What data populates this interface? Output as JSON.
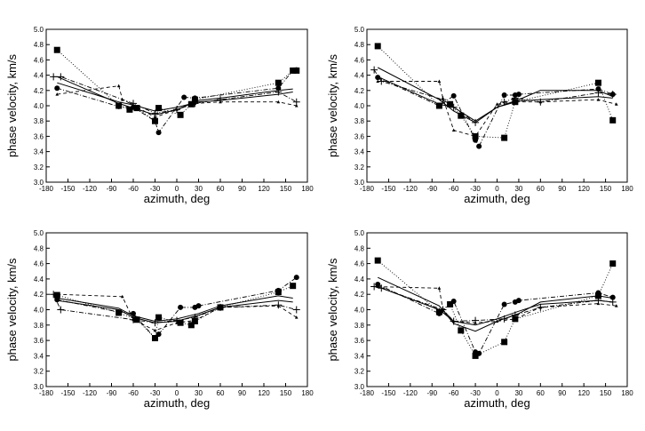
{
  "chart_data": [
    {
      "type": "line",
      "xlabel": "azimuth, deg",
      "ylabel": "phase velocity, km/s",
      "xlim": [
        -180,
        180
      ],
      "ylim": [
        3.0,
        5.0
      ],
      "xticks": [
        "-180",
        "-150",
        "-120",
        "-90",
        "-60",
        "-30",
        "0",
        "30",
        "60",
        "90",
        "120",
        "150",
        "180"
      ],
      "yticks": [
        "3.0",
        "3.2",
        "3.4",
        "3.6",
        "3.8",
        "4.0",
        "4.2",
        "4.4",
        "4.6",
        "4.8",
        "5.0"
      ],
      "series": [
        {
          "style": "solid",
          "marker": "none",
          "x": [
            -165,
            -80,
            -60,
            -30,
            0,
            30,
            60,
            140,
            160
          ],
          "y": [
            4.38,
            4.03,
            3.97,
            3.88,
            3.95,
            4.07,
            4.1,
            4.2,
            4.22
          ]
        },
        {
          "style": "solid",
          "marker": "none",
          "x": [
            -165,
            -80,
            -60,
            -30,
            0,
            30,
            60,
            140,
            160
          ],
          "y": [
            4.3,
            4.05,
            4.01,
            3.93,
            3.98,
            4.05,
            4.07,
            4.15,
            4.18
          ]
        },
        {
          "style": "dotted",
          "marker": "square",
          "x": [
            -165,
            -80,
            -65,
            -55,
            -30,
            -25,
            5,
            20,
            25,
            140,
            160,
            165
          ],
          "y": [
            4.73,
            4.0,
            3.95,
            3.97,
            3.8,
            3.97,
            3.88,
            4.02,
            4.08,
            4.3,
            4.46,
            4.46
          ]
        },
        {
          "style": "dashdot",
          "marker": "circle",
          "x": [
            -165,
            -80,
            -60,
            -30,
            -25,
            10,
            25,
            140,
            160,
            165
          ],
          "y": [
            4.23,
            3.99,
            3.98,
            3.8,
            3.65,
            4.11,
            4.1,
            4.23,
            4.46,
            4.47
          ]
        },
        {
          "style": "dashed",
          "marker": "triangle",
          "x": [
            -165,
            -80,
            -75,
            -60,
            -30,
            0,
            25,
            60,
            140,
            165
          ],
          "y": [
            4.15,
            4.26,
            4.08,
            4.01,
            3.85,
            3.95,
            4.03,
            4.05,
            4.05,
            4.0
          ]
        },
        {
          "style": "dashdot",
          "marker": "plus",
          "x": [
            -170,
            -160,
            -60,
            -30,
            0,
            25,
            60,
            140,
            165
          ],
          "y": [
            4.38,
            4.38,
            4.03,
            3.9,
            3.95,
            4.03,
            4.08,
            4.18,
            4.05
          ]
        }
      ]
    },
    {
      "type": "line",
      "xlabel": "azimuth, deg",
      "ylabel": "phase velocity, km/s",
      "xlim": [
        -180,
        180
      ],
      "ylim": [
        3.0,
        5.0
      ],
      "xticks": [
        "-180",
        "-150",
        "-120",
        "-90",
        "-60",
        "-30",
        "0",
        "30",
        "60",
        "90",
        "120",
        "150",
        "180"
      ],
      "yticks": [
        "3.0",
        "3.2",
        "3.4",
        "3.6",
        "3.8",
        "4.0",
        "4.2",
        "4.4",
        "4.6",
        "4.8",
        "5.0"
      ],
      "series": [
        {
          "style": "solid",
          "marker": "none",
          "x": [
            -165,
            -80,
            -60,
            -30,
            0,
            30,
            60,
            140,
            160
          ],
          "y": [
            4.5,
            4.08,
            3.93,
            3.78,
            3.98,
            4.08,
            4.2,
            4.2,
            4.12
          ]
        },
        {
          "style": "solid",
          "marker": "none",
          "x": [
            -165,
            -80,
            -60,
            -30,
            0,
            30,
            60,
            140,
            160
          ],
          "y": [
            4.38,
            4.02,
            3.98,
            3.8,
            3.98,
            4.06,
            4.08,
            4.12,
            4.1
          ]
        },
        {
          "style": "dotted",
          "marker": "square",
          "x": [
            -165,
            -80,
            -65,
            -50,
            -30,
            10,
            25,
            140,
            160
          ],
          "y": [
            4.78,
            4.0,
            4.02,
            3.87,
            3.6,
            3.58,
            4.05,
            4.3,
            3.81
          ]
        },
        {
          "style": "dashdot",
          "marker": "circle",
          "x": [
            -165,
            -80,
            -60,
            -30,
            -25,
            10,
            25,
            30,
            140,
            160
          ],
          "y": [
            4.37,
            4.0,
            4.13,
            3.55,
            3.47,
            4.14,
            4.14,
            4.15,
            4.22,
            4.15
          ]
        },
        {
          "style": "dashed",
          "marker": "triangle",
          "x": [
            -165,
            -80,
            -75,
            -60,
            -30,
            0,
            25,
            60,
            140,
            165
          ],
          "y": [
            4.32,
            4.32,
            4.1,
            3.68,
            3.6,
            4.02,
            4.05,
            4.05,
            4.08,
            4.02
          ]
        },
        {
          "style": "dashdot",
          "marker": "plus",
          "x": [
            -170,
            -160,
            -75,
            -60,
            -30,
            10,
            25,
            60,
            140,
            160
          ],
          "y": [
            4.47,
            4.32,
            4.08,
            3.98,
            3.78,
            4.05,
            4.1,
            4.05,
            4.17,
            4.15
          ]
        }
      ]
    },
    {
      "type": "line",
      "xlabel": "azimuth, deg",
      "ylabel": "phase velocity, km/s",
      "xlim": [
        -180,
        180
      ],
      "ylim": [
        3.0,
        5.0
      ],
      "xticks": [
        "-180",
        "-150",
        "-120",
        "-90",
        "-60",
        "-30",
        "0",
        "30",
        "60",
        "90",
        "120",
        "150",
        "180"
      ],
      "yticks": [
        "3.0",
        "3.2",
        "3.4",
        "3.6",
        "3.8",
        "4.0",
        "4.2",
        "4.4",
        "4.6",
        "4.8",
        "5.0"
      ],
      "series": [
        {
          "style": "solid",
          "marker": "none",
          "x": [
            -165,
            -80,
            -60,
            -30,
            0,
            30,
            60,
            140,
            160
          ],
          "y": [
            4.15,
            4.02,
            3.92,
            3.85,
            3.88,
            3.95,
            4.05,
            4.18,
            4.15
          ]
        },
        {
          "style": "solid",
          "marker": "none",
          "x": [
            -165,
            -80,
            -60,
            -30,
            0,
            30,
            60,
            140,
            160
          ],
          "y": [
            4.12,
            4.0,
            3.9,
            3.83,
            3.85,
            3.93,
            4.03,
            4.12,
            4.1
          ]
        },
        {
          "style": "dotted",
          "marker": "square",
          "x": [
            -165,
            -80,
            -55,
            -30,
            -25,
            5,
            20,
            25,
            60,
            140,
            160
          ],
          "y": [
            4.19,
            3.96,
            3.87,
            3.63,
            3.9,
            3.83,
            3.8,
            3.85,
            4.03,
            4.23,
            4.31
          ]
        },
        {
          "style": "dashdot",
          "marker": "circle",
          "x": [
            -165,
            -80,
            -60,
            -30,
            -25,
            5,
            25,
            30,
            140,
            165
          ],
          "y": [
            4.13,
            3.97,
            3.95,
            3.63,
            3.68,
            4.03,
            4.03,
            4.05,
            4.25,
            4.42
          ]
        },
        {
          "style": "dashed",
          "marker": "triangle",
          "x": [
            -165,
            -75,
            -60,
            -30,
            0,
            25,
            60,
            140,
            165
          ],
          "y": [
            4.2,
            4.17,
            3.87,
            3.73,
            3.83,
            3.86,
            4.03,
            4.05,
            3.9
          ]
        },
        {
          "style": "dashdot",
          "marker": "plus",
          "x": [
            -170,
            -160,
            -60,
            -30,
            0,
            25,
            60,
            140,
            165
          ],
          "y": [
            4.2,
            4.0,
            3.87,
            3.83,
            3.86,
            3.9,
            4.03,
            4.06,
            4.0
          ]
        }
      ]
    },
    {
      "type": "line",
      "xlabel": "azimuth, deg",
      "ylabel": "phase velocity, km/s",
      "xlim": [
        -180,
        180
      ],
      "ylim": [
        3.0,
        5.0
      ],
      "xticks": [
        "-180",
        "-150",
        "-120",
        "-90",
        "-60",
        "-30",
        "0",
        "30",
        "60",
        "90",
        "120",
        "150",
        "180"
      ],
      "yticks": [
        "3.0",
        "3.2",
        "3.4",
        "3.6",
        "3.8",
        "4.0",
        "4.2",
        "4.4",
        "4.6",
        "4.8",
        "5.0"
      ],
      "series": [
        {
          "style": "solid",
          "marker": "none",
          "x": [
            -165,
            -80,
            -60,
            -30,
            0,
            30,
            60,
            140,
            160
          ],
          "y": [
            4.42,
            4.05,
            3.82,
            3.72,
            3.85,
            3.95,
            4.1,
            4.18,
            4.15
          ]
        },
        {
          "style": "solid",
          "marker": "none",
          "x": [
            -165,
            -80,
            -60,
            -30,
            0,
            30,
            60,
            140,
            160
          ],
          "y": [
            4.3,
            4.0,
            3.85,
            3.8,
            3.88,
            3.98,
            4.07,
            4.12,
            4.1
          ]
        },
        {
          "style": "dotted",
          "marker": "square",
          "x": [
            -165,
            -80,
            -65,
            -50,
            -30,
            10,
            25,
            140,
            160
          ],
          "y": [
            4.64,
            3.97,
            4.07,
            3.73,
            3.4,
            3.58,
            3.88,
            4.18,
            4.6
          ]
        },
        {
          "style": "dashdot",
          "marker": "circle",
          "x": [
            -165,
            -80,
            -60,
            -30,
            -25,
            10,
            25,
            30,
            140,
            160
          ],
          "y": [
            4.33,
            3.95,
            4.11,
            3.45,
            3.43,
            4.07,
            4.1,
            4.12,
            4.22,
            4.16
          ]
        },
        {
          "style": "dashed",
          "marker": "triangle",
          "x": [
            -165,
            -80,
            -75,
            -60,
            -30,
            0,
            25,
            60,
            140,
            165
          ],
          "y": [
            4.3,
            4.28,
            4.0,
            3.85,
            3.83,
            3.85,
            3.88,
            4.03,
            4.08,
            4.05
          ]
        },
        {
          "style": "dashdot",
          "marker": "plus",
          "x": [
            -170,
            -160,
            -75,
            -60,
            -30,
            10,
            25,
            60,
            140,
            160
          ],
          "y": [
            4.3,
            4.28,
            4.0,
            3.85,
            3.86,
            3.88,
            3.93,
            4.03,
            4.12,
            4.1
          ]
        }
      ]
    }
  ]
}
